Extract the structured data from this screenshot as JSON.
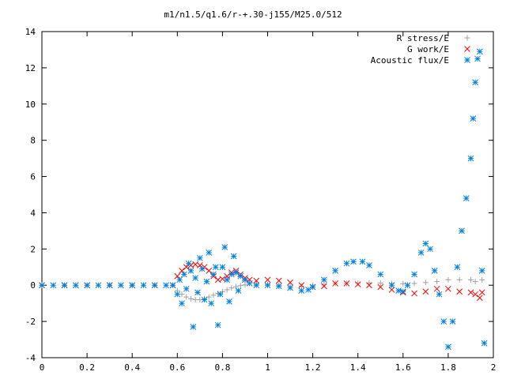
{
  "chart_data": {
    "type": "scatter",
    "title": "m1/n1.5/q1.6/r-+.30-j155/M25.0/512",
    "xlabel": "",
    "ylabel": "",
    "xlim": [
      0,
      2
    ],
    "ylim": [
      -4,
      14
    ],
    "xticks": [
      "0",
      "0.2",
      "0.4",
      "0.6",
      "0.8",
      "1",
      "1.2",
      "1.4",
      "1.6",
      "1.8",
      "2"
    ],
    "yticks": [
      "-4",
      "-2",
      "0",
      "2",
      "4",
      "6",
      "8",
      "10",
      "12",
      "14"
    ],
    "legend_position": "top-right",
    "grid": false,
    "series": [
      {
        "name": "R stress/E",
        "marker": "+",
        "color": "#a0a0a0",
        "points": [
          [
            0.0,
            0
          ],
          [
            0.1,
            0
          ],
          [
            0.2,
            0
          ],
          [
            0.3,
            0
          ],
          [
            0.4,
            0
          ],
          [
            0.5,
            0
          ],
          [
            0.58,
            0
          ],
          [
            0.6,
            -0.3
          ],
          [
            0.62,
            -0.5
          ],
          [
            0.64,
            -0.65
          ],
          [
            0.66,
            -0.75
          ],
          [
            0.68,
            -0.8
          ],
          [
            0.7,
            -0.8
          ],
          [
            0.72,
            -0.75
          ],
          [
            0.74,
            -0.65
          ],
          [
            0.76,
            -0.55
          ],
          [
            0.78,
            -0.45
          ],
          [
            0.8,
            -0.35
          ],
          [
            0.82,
            -0.25
          ],
          [
            0.84,
            -0.15
          ],
          [
            0.86,
            -0.08
          ],
          [
            0.88,
            -0.02
          ],
          [
            0.9,
            0.02
          ],
          [
            0.95,
            0.05
          ],
          [
            1.0,
            0.05
          ],
          [
            1.05,
            0.0
          ],
          [
            1.1,
            -0.05
          ],
          [
            1.15,
            -0.05
          ],
          [
            1.2,
            0.0
          ],
          [
            1.25,
            0.05
          ],
          [
            1.3,
            0.1
          ],
          [
            1.35,
            0.1
          ],
          [
            1.4,
            0.1
          ],
          [
            1.45,
            0.12
          ],
          [
            1.5,
            0.12
          ],
          [
            1.55,
            0.1
          ],
          [
            1.6,
            0.08
          ],
          [
            1.65,
            0.1
          ],
          [
            1.7,
            0.15
          ],
          [
            1.75,
            0.2
          ],
          [
            1.8,
            0.3
          ],
          [
            1.85,
            0.3
          ],
          [
            1.9,
            0.3
          ],
          [
            1.92,
            0.2
          ],
          [
            1.95,
            0.3
          ]
        ]
      },
      {
        "name": "G work/E",
        "marker": "x",
        "color": "#ff0000",
        "points": [
          [
            0.0,
            0
          ],
          [
            0.1,
            0
          ],
          [
            0.2,
            0
          ],
          [
            0.3,
            0
          ],
          [
            0.4,
            0
          ],
          [
            0.5,
            0
          ],
          [
            0.58,
            0
          ],
          [
            0.6,
            0.5
          ],
          [
            0.62,
            0.8
          ],
          [
            0.64,
            1.0
          ],
          [
            0.66,
            1.1
          ],
          [
            0.68,
            1.15
          ],
          [
            0.7,
            1.1
          ],
          [
            0.72,
            1.0
          ],
          [
            0.74,
            0.8
          ],
          [
            0.76,
            0.5
          ],
          [
            0.78,
            0.3
          ],
          [
            0.8,
            0.35
          ],
          [
            0.82,
            0.5
          ],
          [
            0.84,
            0.7
          ],
          [
            0.86,
            0.8
          ],
          [
            0.88,
            0.6
          ],
          [
            0.9,
            0.4
          ],
          [
            0.92,
            0.3
          ],
          [
            0.95,
            0.25
          ],
          [
            1.0,
            0.3
          ],
          [
            1.05,
            0.25
          ],
          [
            1.1,
            0.15
          ],
          [
            1.15,
            0.0
          ],
          [
            1.2,
            -0.1
          ],
          [
            1.25,
            -0.05
          ],
          [
            1.3,
            0.1
          ],
          [
            1.35,
            0.1
          ],
          [
            1.4,
            0.05
          ],
          [
            1.45,
            0.0
          ],
          [
            1.5,
            -0.1
          ],
          [
            1.55,
            -0.25
          ],
          [
            1.6,
            -0.4
          ],
          [
            1.65,
            -0.45
          ],
          [
            1.7,
            -0.35
          ],
          [
            1.75,
            -0.2
          ],
          [
            1.8,
            -0.2
          ],
          [
            1.85,
            -0.35
          ],
          [
            1.9,
            -0.4
          ],
          [
            1.92,
            -0.5
          ],
          [
            1.94,
            -0.7
          ],
          [
            1.95,
            -0.4
          ]
        ]
      },
      {
        "name": "Acoustic flux/E",
        "marker": "*",
        "color": "#0080e0",
        "points": [
          [
            0.0,
            0
          ],
          [
            0.05,
            0
          ],
          [
            0.1,
            0
          ],
          [
            0.15,
            0
          ],
          [
            0.2,
            0
          ],
          [
            0.25,
            0
          ],
          [
            0.3,
            0
          ],
          [
            0.35,
            0
          ],
          [
            0.4,
            0
          ],
          [
            0.45,
            0
          ],
          [
            0.5,
            0
          ],
          [
            0.55,
            0
          ],
          [
            0.58,
            0
          ],
          [
            0.6,
            -0.5
          ],
          [
            0.61,
            0.3
          ],
          [
            0.62,
            -1.0
          ],
          [
            0.63,
            0.6
          ],
          [
            0.64,
            -0.2
          ],
          [
            0.65,
            1.2
          ],
          [
            0.66,
            0.8
          ],
          [
            0.67,
            -2.3
          ],
          [
            0.68,
            0.4
          ],
          [
            0.69,
            -0.4
          ],
          [
            0.7,
            1.5
          ],
          [
            0.71,
            0.9
          ],
          [
            0.72,
            -0.8
          ],
          [
            0.73,
            0.2
          ],
          [
            0.74,
            1.8
          ],
          [
            0.75,
            -1.0
          ],
          [
            0.76,
            0.6
          ],
          [
            0.77,
            1.0
          ],
          [
            0.78,
            -2.2
          ],
          [
            0.79,
            -0.5
          ],
          [
            0.8,
            1.0
          ],
          [
            0.81,
            2.1
          ],
          [
            0.82,
            0.3
          ],
          [
            0.83,
            -0.9
          ],
          [
            0.84,
            0.6
          ],
          [
            0.85,
            1.6
          ],
          [
            0.86,
            0.7
          ],
          [
            0.87,
            -0.3
          ],
          [
            0.88,
            0.5
          ],
          [
            0.9,
            0.3
          ],
          [
            0.92,
            0.1
          ],
          [
            0.95,
            0.0
          ],
          [
            1.0,
            0.0
          ],
          [
            1.05,
            -0.05
          ],
          [
            1.1,
            -0.15
          ],
          [
            1.15,
            -0.3
          ],
          [
            1.18,
            -0.25
          ],
          [
            1.2,
            -0.1
          ],
          [
            1.25,
            0.3
          ],
          [
            1.3,
            0.8
          ],
          [
            1.35,
            1.2
          ],
          [
            1.38,
            1.3
          ],
          [
            1.42,
            1.3
          ],
          [
            1.45,
            1.1
          ],
          [
            1.5,
            0.6
          ],
          [
            1.55,
            0.0
          ],
          [
            1.58,
            -0.3
          ],
          [
            1.6,
            -0.35
          ],
          [
            1.62,
            0.0
          ],
          [
            1.65,
            0.6
          ],
          [
            1.68,
            1.8
          ],
          [
            1.7,
            2.3
          ],
          [
            1.72,
            2.0
          ],
          [
            1.74,
            0.8
          ],
          [
            1.76,
            -0.5
          ],
          [
            1.78,
            -2.0
          ],
          [
            1.8,
            -3.4
          ],
          [
            1.82,
            -2.0
          ],
          [
            1.84,
            1.0
          ],
          [
            1.86,
            3.0
          ],
          [
            1.88,
            4.8
          ],
          [
            1.9,
            7.0
          ],
          [
            1.91,
            9.2
          ],
          [
            1.92,
            11.2
          ],
          [
            1.93,
            12.5
          ],
          [
            1.94,
            12.9
          ],
          [
            1.95,
            0.8
          ],
          [
            1.96,
            -3.2
          ]
        ]
      }
    ]
  }
}
